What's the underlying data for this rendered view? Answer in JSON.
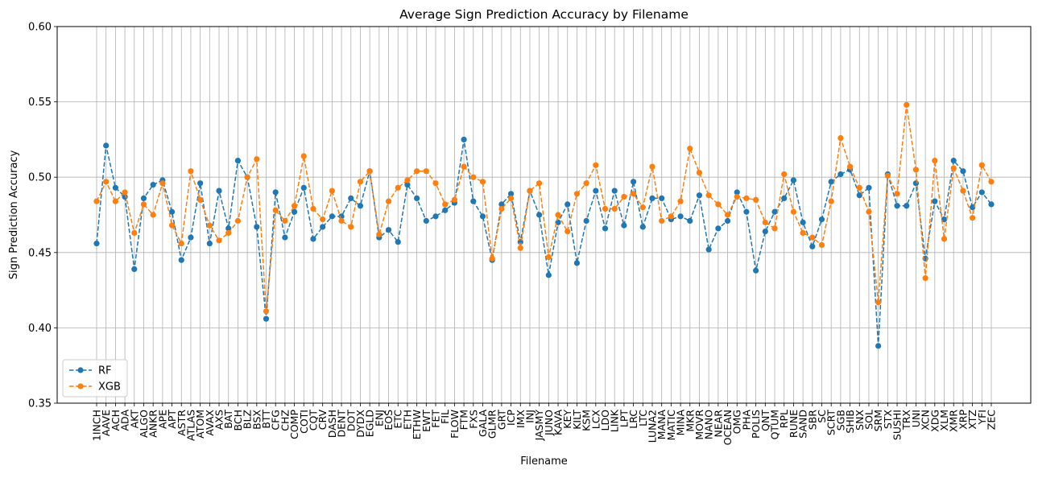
{
  "chart_data": {
    "type": "line",
    "title": "Average Sign Prediction Accuracy by Filename",
    "xlabel": "Filename",
    "ylabel": "Sign Prediction Accuracy",
    "ylim": [
      0.35,
      0.6
    ],
    "yticks": [
      0.35,
      0.4,
      0.45,
      0.5,
      0.55,
      0.6
    ],
    "ytick_labels": [
      "0.35",
      "0.40",
      "0.45",
      "0.50",
      "0.55",
      "0.60"
    ],
    "grid": true,
    "legend_position": "lower-left",
    "categories": [
      "1INCH",
      "AAVE",
      "ACH",
      "ADA",
      "AKT",
      "ALGO",
      "ANKR",
      "APE",
      "APT",
      "ASTR",
      "ATLAS",
      "ATOM",
      "AVAX",
      "AXS",
      "BAT",
      "BCH",
      "BLZ",
      "BSX",
      "BTT",
      "CFG",
      "CHZ",
      "COMP",
      "COTI",
      "CQT",
      "CRV",
      "DASH",
      "DENT",
      "DOT",
      "DYDX",
      "EGLD",
      "ENJ",
      "EOS",
      "ETC",
      "ETH",
      "ETHW",
      "EWT",
      "FET",
      "FIL",
      "FLOW",
      "FTM",
      "FXS",
      "GALA",
      "GLMR",
      "GRT",
      "ICP",
      "IMX",
      "INJ",
      "JASMY",
      "JUNO",
      "KAVA",
      "KEY",
      "KILT",
      "KSM",
      "LCX",
      "LDO",
      "LINK",
      "LPT",
      "LRC",
      "LTC",
      "LUNA2",
      "MANA",
      "MATIC",
      "MINA",
      "MKR",
      "MOVR",
      "NANO",
      "NEAR",
      "OCEAN",
      "OMG",
      "PHA",
      "POLIS",
      "QNT",
      "QTUM",
      "RPL",
      "RUNE",
      "SAND",
      "SBR",
      "SC",
      "SCRT",
      "SGB",
      "SHIB",
      "SNX",
      "SOL",
      "SRM",
      "STX",
      "SUSHI",
      "TRX",
      "UNI",
      "XCN",
      "XDG",
      "XLM",
      "XMR",
      "XRP",
      "XTZ",
      "YFI",
      "ZEC"
    ],
    "series": [
      {
        "name": "RF",
        "color": "#1f77b4",
        "values": [
          0.456,
          0.521,
          0.493,
          0.487,
          0.439,
          0.486,
          0.495,
          0.498,
          0.477,
          0.445,
          0.46,
          0.496,
          0.456,
          0.491,
          0.466,
          0.511,
          0.5,
          0.467,
          0.406,
          0.49,
          0.46,
          0.477,
          0.493,
          0.459,
          0.467,
          0.474,
          0.474,
          0.486,
          0.481,
          0.504,
          0.46,
          0.465,
          0.457,
          0.495,
          0.486,
          0.471,
          0.474,
          0.478,
          0.483,
          0.525,
          0.484,
          0.474,
          0.445,
          0.482,
          0.489,
          0.457,
          0.491,
          0.475,
          0.435,
          0.47,
          0.482,
          0.443,
          0.471,
          0.491,
          0.466,
          0.491,
          0.468,
          0.497,
          0.467,
          0.486,
          0.486,
          0.472,
          0.474,
          0.471,
          0.488,
          0.452,
          0.466,
          0.471,
          0.49,
          0.477,
          0.438,
          0.464,
          0.477,
          0.486,
          0.498,
          0.47,
          0.454,
          0.472,
          0.497,
          0.502,
          0.505,
          0.488,
          0.493,
          0.388,
          0.502,
          0.481,
          0.481,
          0.496,
          0.446,
          0.484,
          0.472,
          0.511,
          0.504,
          0.48,
          0.49,
          0.482
        ]
      },
      {
        "name": "XGB",
        "color": "#ff7f0e",
        "values": [
          0.484,
          0.497,
          0.484,
          0.49,
          0.463,
          0.482,
          0.475,
          0.496,
          0.468,
          0.456,
          0.504,
          0.485,
          0.468,
          0.458,
          0.463,
          0.471,
          0.5,
          0.512,
          0.411,
          0.478,
          0.471,
          0.481,
          0.514,
          0.479,
          0.472,
          0.491,
          0.471,
          0.467,
          0.497,
          0.504,
          0.462,
          0.484,
          0.493,
          0.498,
          0.504,
          0.504,
          0.496,
          0.482,
          0.485,
          0.507,
          0.5,
          0.497,
          0.446,
          0.479,
          0.486,
          0.453,
          0.491,
          0.496,
          0.447,
          0.475,
          0.464,
          0.489,
          0.496,
          0.508,
          0.479,
          0.479,
          0.487,
          0.489,
          0.48,
          0.507,
          0.471,
          0.474,
          0.484,
          0.519,
          0.503,
          0.488,
          0.482,
          0.475,
          0.487,
          0.486,
          0.485,
          0.47,
          0.466,
          0.502,
          0.477,
          0.463,
          0.46,
          0.455,
          0.484,
          0.526,
          0.507,
          0.493,
          0.477,
          0.417,
          0.501,
          0.489,
          0.548,
          0.505,
          0.433,
          0.511,
          0.459,
          0.506,
          0.491,
          0.473,
          0.508,
          0.497
        ]
      }
    ]
  }
}
